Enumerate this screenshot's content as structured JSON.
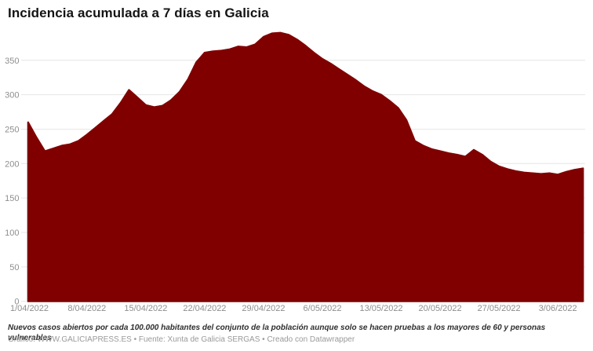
{
  "header": {
    "title": "Incidencia acumulada a 7 días en Galicia"
  },
  "footer": {
    "notes": "Nuevos casos abiertos por cada 100.000 habitantes del conjunto de la población aunque solo se hacen pruebas a los mayores de 60 y personas vulnerables",
    "byline": "Gráfico: WWW.GALICIAPRESS.ES • Fuente: Xunta de Galicia SERGAS • Creado con Datawrapper"
  },
  "colors": {
    "area": "#800000",
    "title": "#141414",
    "axis_label": "#8e8e8e",
    "gridline": "#e6e6e6",
    "notes": "#2e2e2e",
    "byline": "#9a9a9a",
    "background": "#ffffff"
  },
  "chart_data": {
    "type": "area",
    "title": "Incidencia acumulada a 7 días en Galicia",
    "xlabel": "",
    "ylabel": "",
    "grid": true,
    "legend": "none",
    "ylim": [
      0,
      392
    ],
    "y_ticks": [
      0,
      50,
      100,
      150,
      200,
      250,
      300,
      350
    ],
    "x_tick_labels": [
      "1/04/2022",
      "8/04/2022",
      "15/04/2022",
      "22/04/2022",
      "29/04/2022",
      "6/05/2022",
      "13/05/2022",
      "20/05/2022",
      "27/05/2022",
      "3/06/2022"
    ],
    "dates": [
      "1/04/2022",
      "2/04/2022",
      "3/04/2022",
      "4/04/2022",
      "5/04/2022",
      "6/04/2022",
      "7/04/2022",
      "8/04/2022",
      "9/04/2022",
      "10/04/2022",
      "11/04/2022",
      "12/04/2022",
      "13/04/2022",
      "14/04/2022",
      "15/04/2022",
      "16/04/2022",
      "17/04/2022",
      "18/04/2022",
      "19/04/2022",
      "20/04/2022",
      "21/04/2022",
      "22/04/2022",
      "23/04/2022",
      "24/04/2022",
      "25/04/2022",
      "26/04/2022",
      "27/04/2022",
      "28/04/2022",
      "29/04/2022",
      "30/04/2022",
      "1/05/2022",
      "2/05/2022",
      "3/05/2022",
      "4/05/2022",
      "5/05/2022",
      "6/05/2022",
      "7/05/2022",
      "8/05/2022",
      "9/05/2022",
      "10/05/2022",
      "11/05/2022",
      "12/05/2022",
      "13/05/2022",
      "14/05/2022",
      "15/05/2022",
      "16/05/2022",
      "17/05/2022",
      "18/05/2022",
      "19/05/2022",
      "20/05/2022",
      "21/05/2022",
      "22/05/2022",
      "23/05/2022",
      "24/05/2022",
      "25/05/2022",
      "26/05/2022",
      "27/05/2022",
      "28/05/2022",
      "29/05/2022",
      "30/05/2022",
      "31/05/2022",
      "1/06/2022",
      "2/06/2022",
      "3/06/2022",
      "4/06/2022",
      "5/06/2022",
      "6/06/2022"
    ],
    "values": [
      260,
      238,
      218,
      222,
      226,
      228,
      233,
      242,
      252,
      262,
      272,
      288,
      307,
      296,
      285,
      282,
      284,
      292,
      304,
      322,
      347,
      361,
      363,
      364,
      366,
      370,
      369,
      373,
      384,
      389,
      390,
      387,
      380,
      371,
      361,
      352,
      345,
      337,
      329,
      321,
      312,
      305,
      300,
      291,
      281,
      263,
      233,
      226,
      221,
      218,
      215,
      213,
      210,
      220,
      213,
      203,
      196,
      192,
      189,
      187,
      186,
      185,
      186,
      184,
      188,
      191,
      193
    ]
  }
}
